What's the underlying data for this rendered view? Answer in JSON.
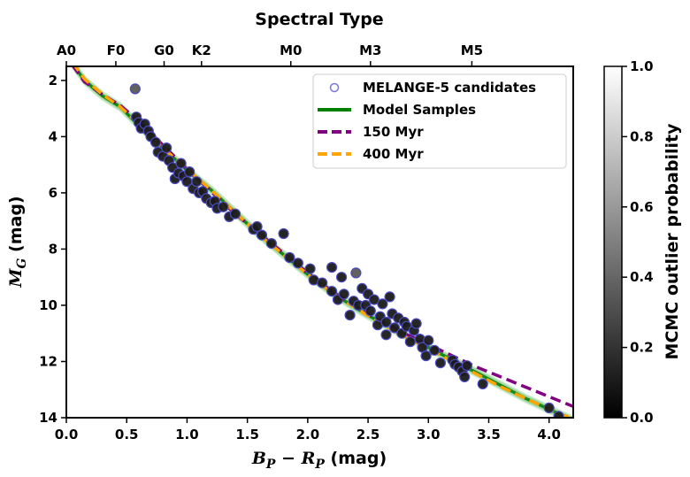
{
  "chart_data": {
    "type": "scatter",
    "top_axis_title": "Spectral Type",
    "xlabel_math": "B",
    "xlabel_sub1": "P",
    "xlabel_sep": " − ",
    "xlabel_math2": "R",
    "xlabel_sub2": "P",
    "xlabel_unit": " (mag)",
    "ylabel_math": "M",
    "ylabel_sub": "G",
    "ylabel_unit": " (mag)",
    "colorbar_label": "MCMC outlier probability",
    "xlim": [
      0.0,
      4.2
    ],
    "ylim": [
      14,
      1.5
    ],
    "x_ticks": [
      0.0,
      0.5,
      1.0,
      1.5,
      2.0,
      2.5,
      3.0,
      3.5,
      4.0
    ],
    "x_tick_labels": [
      "0.0",
      "0.5",
      "1.0",
      "1.5",
      "2.0",
      "2.5",
      "3.0",
      "3.5",
      "4.0"
    ],
    "y_ticks": [
      2,
      4,
      6,
      8,
      10,
      12,
      14
    ],
    "y_tick_labels": [
      "2",
      "4",
      "6",
      "8",
      "10",
      "12",
      "14"
    ],
    "spectral_ticks": [
      {
        "label": "A0",
        "x": 0.0
      },
      {
        "label": "F0",
        "x": 0.41
      },
      {
        "label": "G0",
        "x": 0.81
      },
      {
        "label": "K2",
        "x": 1.12
      },
      {
        "label": "M0",
        "x": 1.86
      },
      {
        "label": "M3",
        "x": 2.52
      },
      {
        "label": "M5",
        "x": 3.36
      }
    ],
    "colorbar_ticks": [
      0.0,
      0.2,
      0.4,
      0.6,
      0.8,
      1.0
    ],
    "colorbar_tick_labels": [
      "0.0",
      "0.2",
      "0.4",
      "0.6",
      "0.8",
      "1.0"
    ],
    "legend": {
      "position": "upper-right",
      "entries": [
        {
          "label": "MELANGE-5 candidates",
          "style": "open-circle",
          "color": "#7777dd"
        },
        {
          "label": "Model Samples",
          "style": "line",
          "color": "#008000"
        },
        {
          "label": "150 Myr",
          "style": "dashed",
          "color": "#800080"
        },
        {
          "label": "400 Myr",
          "style": "dashed",
          "color": "#ffa500"
        }
      ]
    },
    "series": [
      {
        "name": "MELANGE-5 candidates",
        "type": "scatter",
        "points": [
          [
            0.57,
            2.3,
            0.35
          ],
          [
            0.58,
            3.3,
            0.1
          ],
          [
            0.6,
            3.5,
            0.1
          ],
          [
            0.62,
            3.7,
            0.1
          ],
          [
            0.65,
            3.55,
            0.1
          ],
          [
            0.68,
            3.8,
            0.1
          ],
          [
            0.7,
            4.0,
            0.1
          ],
          [
            0.74,
            4.2,
            0.1
          ],
          [
            0.76,
            4.55,
            0.1
          ],
          [
            0.8,
            4.7,
            0.1
          ],
          [
            0.83,
            4.4,
            0.1
          ],
          [
            0.85,
            4.85,
            0.1
          ],
          [
            0.88,
            5.1,
            0.1
          ],
          [
            0.9,
            5.5,
            0.1
          ],
          [
            0.93,
            5.3,
            0.1
          ],
          [
            0.95,
            4.95,
            0.1
          ],
          [
            0.97,
            5.4,
            0.1
          ],
          [
            1.0,
            5.6,
            0.1
          ],
          [
            1.02,
            5.25,
            0.1
          ],
          [
            1.05,
            5.85,
            0.1
          ],
          [
            1.08,
            5.6,
            0.1
          ],
          [
            1.1,
            6.0,
            0.1
          ],
          [
            1.13,
            5.95,
            0.1
          ],
          [
            1.16,
            6.2,
            0.1
          ],
          [
            1.2,
            6.35,
            0.1
          ],
          [
            1.23,
            6.3,
            0.1
          ],
          [
            1.25,
            6.55,
            0.1
          ],
          [
            1.3,
            6.5,
            0.1
          ],
          [
            1.35,
            6.85,
            0.1
          ],
          [
            1.4,
            6.75,
            0.1
          ],
          [
            1.55,
            7.3,
            0.1
          ],
          [
            1.58,
            7.2,
            0.1
          ],
          [
            1.62,
            7.5,
            0.1
          ],
          [
            1.7,
            7.8,
            0.1
          ],
          [
            1.8,
            7.45,
            0.1
          ],
          [
            1.85,
            8.3,
            0.1
          ],
          [
            1.92,
            8.5,
            0.1
          ],
          [
            2.02,
            8.7,
            0.1
          ],
          [
            2.05,
            9.1,
            0.1
          ],
          [
            2.12,
            9.2,
            0.1
          ],
          [
            2.2,
            9.5,
            0.1
          ],
          [
            2.2,
            8.65,
            0.1
          ],
          [
            2.25,
            9.8,
            0.1
          ],
          [
            2.28,
            9.0,
            0.1
          ],
          [
            2.3,
            9.6,
            0.1
          ],
          [
            2.35,
            10.35,
            0.1
          ],
          [
            2.38,
            9.85,
            0.1
          ],
          [
            2.4,
            8.85,
            0.35
          ],
          [
            2.42,
            10.0,
            0.1
          ],
          [
            2.45,
            9.4,
            0.1
          ],
          [
            2.48,
            10.0,
            0.1
          ],
          [
            2.5,
            9.6,
            0.1
          ],
          [
            2.52,
            10.2,
            0.1
          ],
          [
            2.55,
            9.8,
            0.1
          ],
          [
            2.58,
            10.7,
            0.1
          ],
          [
            2.6,
            10.4,
            0.1
          ],
          [
            2.62,
            9.95,
            0.1
          ],
          [
            2.65,
            10.6,
            0.1
          ],
          [
            2.65,
            11.05,
            0.1
          ],
          [
            2.68,
            9.7,
            0.1
          ],
          [
            2.7,
            10.3,
            0.1
          ],
          [
            2.72,
            10.8,
            0.1
          ],
          [
            2.75,
            10.45,
            0.1
          ],
          [
            2.78,
            11.0,
            0.1
          ],
          [
            2.8,
            10.6,
            0.1
          ],
          [
            2.82,
            10.75,
            0.1
          ],
          [
            2.85,
            11.3,
            0.1
          ],
          [
            2.88,
            10.9,
            0.1
          ],
          [
            2.9,
            10.65,
            0.1
          ],
          [
            2.93,
            11.2,
            0.1
          ],
          [
            2.95,
            11.5,
            0.1
          ],
          [
            2.98,
            11.8,
            0.1
          ],
          [
            3.0,
            11.25,
            0.1
          ],
          [
            3.05,
            11.6,
            0.1
          ],
          [
            3.1,
            12.05,
            0.1
          ],
          [
            3.2,
            11.95,
            0.1
          ],
          [
            3.22,
            12.1,
            0.1
          ],
          [
            3.25,
            12.2,
            0.1
          ],
          [
            3.28,
            12.35,
            0.1
          ],
          [
            3.3,
            12.55,
            0.1
          ],
          [
            3.32,
            12.15,
            0.1
          ],
          [
            3.45,
            12.8,
            0.1
          ],
          [
            4.0,
            13.65,
            0.1
          ],
          [
            4.08,
            13.95,
            0.1
          ]
        ]
      },
      {
        "name": "Model Samples",
        "type": "line",
        "x": [
          0.05,
          0.15,
          0.3,
          0.45,
          0.6,
          0.8,
          1.0,
          1.2,
          1.4,
          1.6,
          1.8,
          2.0,
          2.2,
          2.4,
          2.6,
          2.8,
          3.0,
          3.2,
          3.4,
          3.6,
          3.8,
          4.0,
          4.2
        ],
        "y": [
          1.4,
          2.0,
          2.55,
          2.95,
          3.6,
          4.4,
          5.2,
          5.9,
          6.7,
          7.5,
          8.2,
          8.9,
          9.55,
          10.1,
          10.6,
          11.05,
          11.5,
          11.95,
          12.4,
          12.85,
          13.3,
          13.7,
          14.1
        ]
      },
      {
        "name": "150 Myr",
        "type": "dashed",
        "x": [
          0.05,
          0.15,
          0.3,
          0.45,
          0.6,
          0.8,
          1.0,
          1.2,
          1.4,
          1.6,
          1.8,
          2.0,
          2.2,
          2.4,
          2.6,
          2.8,
          3.0,
          3.2,
          3.4,
          3.6,
          3.8,
          4.0,
          4.2
        ],
        "y": [
          1.45,
          2.05,
          2.5,
          2.9,
          3.45,
          4.3,
          5.15,
          5.95,
          6.75,
          7.45,
          8.15,
          8.85,
          9.5,
          10.05,
          10.55,
          11.0,
          11.4,
          11.8,
          12.2,
          12.55,
          12.9,
          13.25,
          13.6
        ]
      },
      {
        "name": "400 Myr",
        "type": "dashed",
        "x": [
          0.05,
          0.15,
          0.3,
          0.45,
          0.6,
          0.8,
          1.0,
          1.2,
          1.4,
          1.6,
          1.8,
          2.0,
          2.2,
          2.4,
          2.6,
          2.8,
          3.0,
          3.2,
          3.4,
          3.6,
          3.8,
          4.0,
          4.2
        ],
        "y": [
          1.35,
          1.95,
          2.5,
          2.95,
          3.55,
          4.4,
          5.15,
          5.9,
          6.7,
          7.5,
          8.2,
          8.9,
          9.55,
          10.1,
          10.65,
          11.1,
          11.55,
          12.0,
          12.45,
          12.9,
          13.3,
          13.7,
          14.05
        ]
      }
    ]
  }
}
